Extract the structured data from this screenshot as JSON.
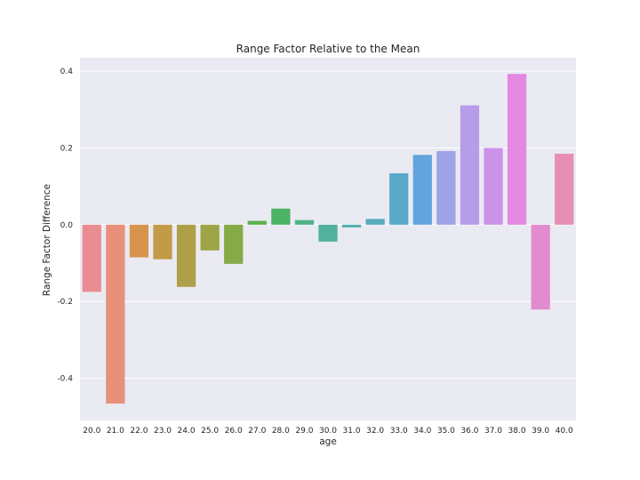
{
  "chart_data": {
    "type": "bar",
    "title": "Range Factor Relative to the Mean",
    "xlabel": "age",
    "ylabel": "Range Factor Difference",
    "categories": [
      "20.0",
      "21.0",
      "22.0",
      "23.0",
      "24.0",
      "25.0",
      "26.0",
      "27.0",
      "28.0",
      "29.0",
      "30.0",
      "31.0",
      "32.0",
      "33.0",
      "34.0",
      "35.0",
      "36.0",
      "37.0",
      "38.0",
      "39.0",
      "40.0"
    ],
    "values": [
      -0.175,
      -0.466,
      -0.085,
      -0.09,
      -0.162,
      -0.067,
      -0.102,
      0.01,
      0.042,
      0.012,
      -0.044,
      -0.007,
      0.015,
      0.134,
      0.182,
      0.192,
      0.311,
      0.2,
      0.393,
      -0.221,
      0.185
    ],
    "colors": [
      "#ea8c91",
      "#e8907a",
      "#d6944c",
      "#c29a48",
      "#ae9f48",
      "#9da546",
      "#86aa46",
      "#5bb04a",
      "#4cb266",
      "#4fb28a",
      "#52b09d",
      "#52adab",
      "#56acbb",
      "#5aa9c9",
      "#62a5de",
      "#9ca4e7",
      "#b69ce9",
      "#cc92e9",
      "#e488e2",
      "#e28bcf",
      "#e68eb4"
    ],
    "yticks": [
      -0.4,
      -0.2,
      0.0,
      0.2,
      0.4
    ],
    "ytick_labels": [
      "-0.4",
      "-0.2",
      "0.0",
      "0.2",
      "0.4"
    ],
    "ylim": [
      -0.51,
      0.435
    ],
    "grid": true,
    "background": "#eaeaf2"
  }
}
